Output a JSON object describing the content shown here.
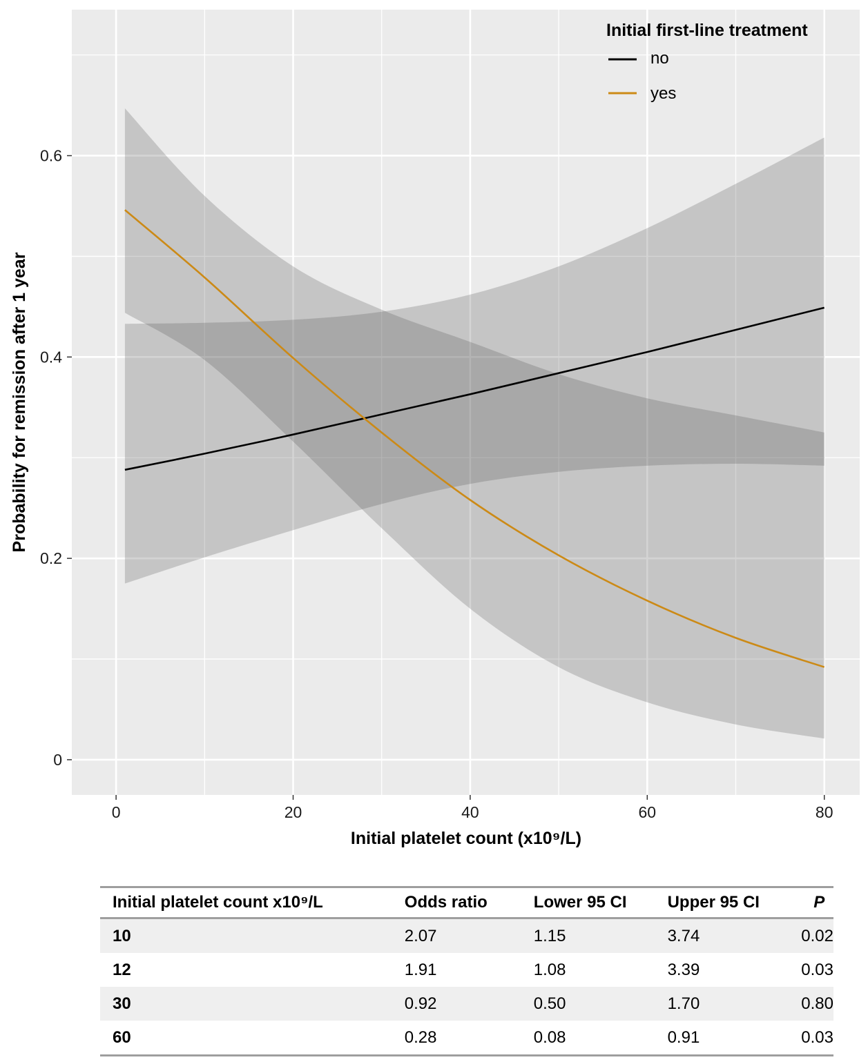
{
  "chart_data": {
    "type": "line",
    "title": "",
    "xlabel": "Initial platelet count (x10⁹/L)",
    "ylabel": "Probability for remission after 1 year",
    "xlim": [
      -5,
      84
    ],
    "ylim": [
      -0.035,
      0.745
    ],
    "x_ticks": [
      0,
      20,
      40,
      60,
      80
    ],
    "x_tick_labels": [
      "0",
      "20",
      "40",
      "60",
      "80"
    ],
    "x_minor_ticks": [
      10,
      30,
      50,
      70
    ],
    "y_ticks": [
      0,
      0.2,
      0.4,
      0.6
    ],
    "y_tick_labels": [
      "0",
      "0.2",
      "0.4",
      "0.6"
    ],
    "y_minor_ticks": [
      0.1,
      0.3,
      0.5,
      0.7
    ],
    "grid": true,
    "legend": {
      "title": "Initial first-line treatment",
      "position": "top-right"
    },
    "series": [
      {
        "name": "no",
        "color": "#000000",
        "band_color": "#555555",
        "x": [
          1,
          10,
          20,
          30,
          40,
          50,
          60,
          70,
          80
        ],
        "y": [
          0.288,
          0.304,
          0.323,
          0.343,
          0.363,
          0.384,
          0.405,
          0.427,
          0.449
        ],
        "lower": [
          0.175,
          0.201,
          0.228,
          0.254,
          0.274,
          0.286,
          0.292,
          0.294,
          0.292
        ],
        "upper": [
          0.433,
          0.434,
          0.437,
          0.445,
          0.462,
          0.49,
          0.528,
          0.572,
          0.618
        ]
      },
      {
        "name": "yes",
        "color": "#CC8A16",
        "band_color": "#555555",
        "x": [
          1,
          10,
          20,
          30,
          40,
          50,
          60,
          70,
          80
        ],
        "y": [
          0.546,
          0.479,
          0.399,
          0.325,
          0.258,
          0.203,
          0.158,
          0.121,
          0.092
        ],
        "lower": [
          0.444,
          0.397,
          0.316,
          0.23,
          0.15,
          0.092,
          0.057,
          0.035,
          0.021
        ],
        "upper": [
          0.647,
          0.56,
          0.49,
          0.447,
          0.415,
          0.383,
          0.359,
          0.342,
          0.325
        ]
      }
    ]
  },
  "table": {
    "headers": {
      "count": "Initial platelet count x10⁹/L",
      "odds": "Odds ratio",
      "lower": "Lower 95 CI",
      "upper": "Upper 95 CI",
      "p": "P"
    },
    "rows": [
      {
        "count": "10",
        "odds": "2.07",
        "lower": "1.15",
        "upper": "3.74",
        "p": "0.02"
      },
      {
        "count": "12",
        "odds": "1.91",
        "lower": "1.08",
        "upper": "3.39",
        "p": "0.03"
      },
      {
        "count": "30",
        "odds": "0.92",
        "lower": "0.50",
        "upper": "1.70",
        "p": "0.80"
      },
      {
        "count": "60",
        "odds": "0.28",
        "lower": "0.08",
        "upper": "0.91",
        "p": "0.03"
      }
    ]
  }
}
